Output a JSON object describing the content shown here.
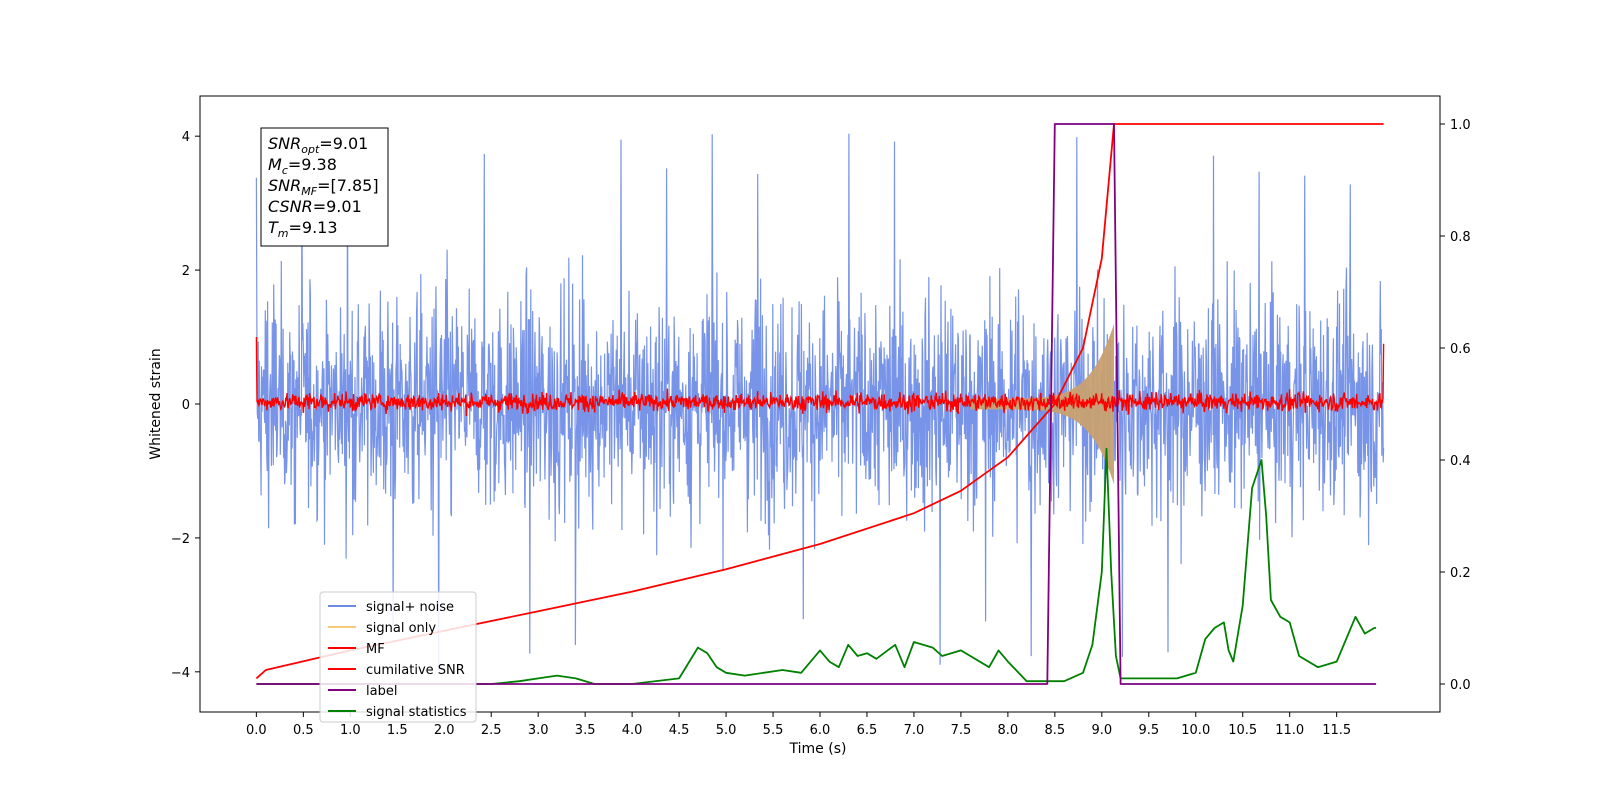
{
  "chart_data": {
    "type": "line",
    "xlabel": "Time (s)",
    "ylabel": "Whitened strain",
    "xlim": [
      -0.6,
      12.6
    ],
    "ylim_left": [
      -4.6,
      4.6
    ],
    "ylim_right": [
      -0.05,
      1.05
    ],
    "x_ticks": [
      "0.0",
      "0.5",
      "1.0",
      "1.5",
      "2.0",
      "2.5",
      "3.0",
      "3.5",
      "4.0",
      "4.5",
      "5.0",
      "5.5",
      "6.0",
      "6.5",
      "7.0",
      "7.5",
      "8.0",
      "8.5",
      "9.0",
      "9.5",
      "10.0",
      "10.5",
      "11.0",
      "11.5"
    ],
    "x_tick_values": [
      0,
      0.5,
      1,
      1.5,
      2,
      2.5,
      3,
      3.5,
      4,
      4.5,
      5,
      5.5,
      6,
      6.5,
      7,
      7.5,
      8,
      8.5,
      9,
      9.5,
      10,
      10.5,
      11,
      11.5
    ],
    "y_left_ticks": [
      "−4",
      "−2",
      "0",
      "2",
      "4"
    ],
    "y_left_tick_values": [
      -4,
      -2,
      0,
      2,
      4
    ],
    "y_right_ticks": [
      "0.0",
      "0.2",
      "0.4",
      "0.6",
      "0.8",
      "1.0"
    ],
    "y_right_tick_values": [
      0,
      0.2,
      0.4,
      0.6,
      0.8,
      1.0
    ],
    "annotation": [
      {
        "var": "SNR",
        "sub": "opt",
        "value": "=9.01"
      },
      {
        "var": "M",
        "sub": "c",
        "value": "=9.38"
      },
      {
        "var": "SNR",
        "sub": "MF",
        "value": "=[7.85]"
      },
      {
        "var": "CSNR",
        "sub": "",
        "value": "=9.01"
      },
      {
        "var": "T",
        "sub": "m",
        "value": "=9.13"
      }
    ],
    "legend": [
      {
        "label": "signal+ noise",
        "color": "#6d8be6"
      },
      {
        "label": "signal only",
        "color": "#f5c87a"
      },
      {
        "label": "MF",
        "color": "#ff0000"
      },
      {
        "label": "cumilative SNR",
        "color": "#ff0000"
      },
      {
        "label": "label",
        "color": "#800080"
      },
      {
        "label": "signal statistics",
        "color": "#008000"
      }
    ],
    "series": [
      {
        "name": "signal+ noise",
        "axis": "left",
        "color": "#6d8be6",
        "x_range": [
          0,
          12.0
        ],
        "amplitude": 2.6,
        "peak_values": [
          4.05,
          -4.0
        ],
        "note": "whitened noise, rendered as dense band"
      },
      {
        "name": "signal only",
        "axis": "left",
        "color": "#c8a070",
        "x_start": 7.6,
        "x_end": 9.13,
        "amplitude_start": 0.08,
        "amplitude_end": 1.2
      },
      {
        "name": "MF",
        "axis": "left",
        "color": "#ff0000",
        "x_range": [
          0,
          12.0
        ],
        "amplitude": 0.3,
        "edge_values": [
          1.0,
          0.9
        ]
      },
      {
        "name": "cumilative SNR",
        "axis": "right",
        "color": "#ff0000",
        "x": [
          0,
          0.1,
          1,
          2,
          3,
          4,
          5,
          6,
          7,
          7.5,
          8,
          8.5,
          8.8,
          9.0,
          9.13,
          12.0
        ],
        "y": [
          0.01,
          0.025,
          0.06,
          0.095,
          0.13,
          0.165,
          0.205,
          0.25,
          0.305,
          0.345,
          0.405,
          0.5,
          0.6,
          0.76,
          1.0,
          1.0
        ]
      },
      {
        "name": "label",
        "axis": "right",
        "color": "#800080",
        "x": [
          0,
          8.42,
          8.5,
          9.13,
          9.2,
          11.92
        ],
        "y": [
          0,
          0,
          1,
          1,
          0,
          0
        ]
      },
      {
        "name": "signal statistics",
        "axis": "right",
        "color": "#008000",
        "x": [
          0,
          0.5,
          1,
          1.5,
          2,
          2.5,
          2.8,
          3.0,
          3.2,
          3.4,
          3.6,
          4.0,
          4.5,
          4.7,
          4.8,
          4.9,
          5.0,
          5.2,
          5.4,
          5.6,
          5.8,
          6.0,
          6.1,
          6.2,
          6.3,
          6.4,
          6.5,
          6.6,
          6.8,
          6.9,
          7.0,
          7.2,
          7.3,
          7.5,
          7.8,
          7.9,
          8.0,
          8.2,
          8.4,
          8.6,
          8.8,
          8.9,
          9.0,
          9.05,
          9.1,
          9.15,
          9.2,
          9.5,
          9.8,
          10.0,
          10.1,
          10.2,
          10.3,
          10.35,
          10.4,
          10.45,
          10.5,
          10.6,
          10.7,
          10.75,
          10.8,
          10.9,
          11.0,
          11.1,
          11.3,
          11.5,
          11.7,
          11.8,
          11.9,
          11.92
        ],
        "y": [
          0.0,
          0.0,
          0.0,
          0.0,
          0.0,
          0.0,
          0.005,
          0.01,
          0.015,
          0.01,
          0.0,
          0.0,
          0.01,
          0.065,
          0.055,
          0.03,
          0.02,
          0.015,
          0.02,
          0.025,
          0.02,
          0.06,
          0.04,
          0.03,
          0.07,
          0.05,
          0.055,
          0.045,
          0.07,
          0.03,
          0.075,
          0.065,
          0.05,
          0.06,
          0.03,
          0.06,
          0.04,
          0.005,
          0.005,
          0.005,
          0.02,
          0.07,
          0.2,
          0.42,
          0.2,
          0.05,
          0.01,
          0.01,
          0.01,
          0.02,
          0.08,
          0.1,
          0.11,
          0.06,
          0.04,
          0.09,
          0.14,
          0.35,
          0.4,
          0.3,
          0.15,
          0.12,
          0.11,
          0.05,
          0.03,
          0.04,
          0.12,
          0.09,
          0.1,
          0.1
        ]
      }
    ]
  }
}
